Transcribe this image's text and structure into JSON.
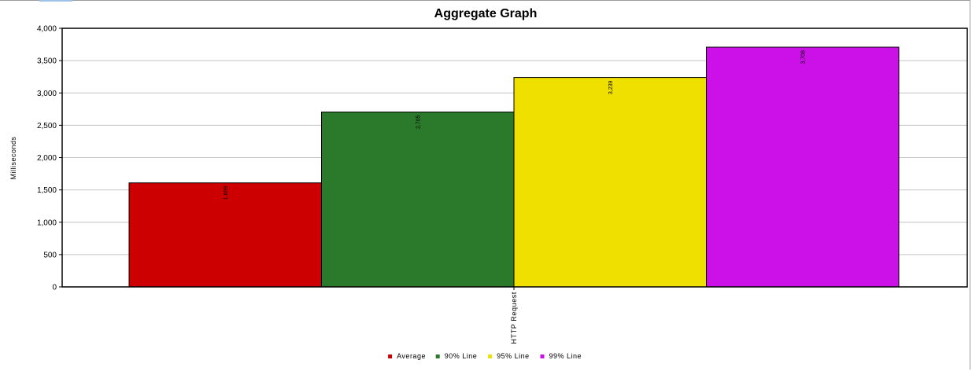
{
  "chart_data": {
    "type": "bar",
    "title": "Aggregate Graph",
    "ylabel": "Milliseconds",
    "xlabel": "",
    "categories": [
      "HTTP Request"
    ],
    "ylim": [
      0,
      4000
    ],
    "yticks": [
      0,
      500,
      1000,
      1500,
      2000,
      2500,
      3000,
      3500,
      4000
    ],
    "ytick_labels": [
      "0",
      "500",
      "1,000",
      "1,500",
      "2,000",
      "2,500",
      "3,000",
      "3,500",
      "4,000"
    ],
    "grid": true,
    "legend_position": "bottom",
    "series": [
      {
        "name": "Average",
        "values": [
          1609
        ],
        "label": "1,609",
        "color": "#cc0000"
      },
      {
        "name": "90% Line",
        "values": [
          2705
        ],
        "label": "2,705",
        "color": "#2b7a2b"
      },
      {
        "name": "95% Line",
        "values": [
          3239
        ],
        "label": "3,239",
        "color": "#f0e000"
      },
      {
        "name": "99% Line",
        "values": [
          3708
        ],
        "label": "3,708",
        "color": "#cc10e8"
      }
    ]
  }
}
